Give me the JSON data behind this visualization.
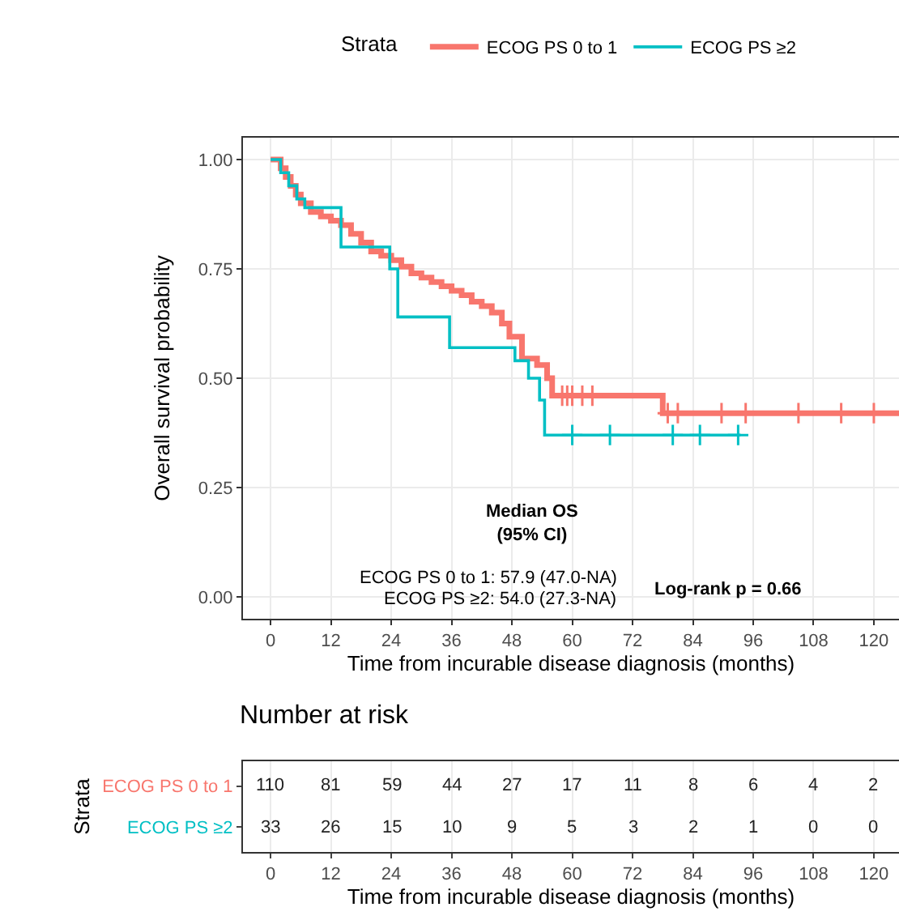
{
  "chart_data": [
    {
      "type": "step",
      "xlabel": "Time from incurable disease diagnosis (months)",
      "ylabel": "Overall survival probability",
      "legend_title": "Strata",
      "legend": "top",
      "grid": true,
      "line_style": "solid",
      "xlim": [
        -5.5,
        125
      ],
      "xticks": [
        0,
        12,
        24,
        36,
        48,
        60,
        72,
        84,
        96,
        108,
        120
      ],
      "ylim": [
        -0.05,
        1.05
      ],
      "yticks": [
        {
          "value": 0,
          "label": "0.00"
        },
        {
          "value": 0.25,
          "label": "0.25"
        },
        {
          "value": 0.5,
          "label": "0.50"
        },
        {
          "value": 0.75,
          "label": "0.75"
        },
        {
          "value": 1,
          "label": "1.00"
        }
      ],
      "annotations": [
        "Median OS\n(95% CI)",
        "ECOG PS 0 to 1: 57.9 (47.0-NA)",
        "ECOG PS ≥2: 54.0 (27.3-NA)",
        "Log-rank p = 0.66"
      ],
      "series": [
        {
          "name": "ECOG PS 0 to 1",
          "color": "#f8766d",
          "x": [
            0,
            2,
            3,
            4,
            5,
            6,
            8,
            10,
            12,
            14,
            16,
            18,
            20,
            22,
            24,
            26,
            28,
            30,
            32,
            34,
            36,
            38,
            40,
            42,
            44,
            46,
            47.5,
            50,
            53,
            55,
            56,
            78,
            125
          ],
          "values": [
            1,
            0.98,
            0.96,
            0.94,
            0.92,
            0.9,
            0.88,
            0.87,
            0.86,
            0.85,
            0.83,
            0.81,
            0.79,
            0.78,
            0.77,
            0.755,
            0.74,
            0.73,
            0.72,
            0.71,
            0.7,
            0.69,
            0.675,
            0.665,
            0.65,
            0.625,
            0.595,
            0.545,
            0.53,
            0.5,
            0.46,
            0.42,
            0.42
          ]
        },
        {
          "name": "ECOG PS ≥2",
          "color": "#00bfc4",
          "x": [
            0,
            2,
            3.6,
            5.2,
            6.8,
            14,
            23.7,
            25.3,
            35.6,
            48.6,
            51.3,
            53.5,
            54.5,
            93.5
          ],
          "values": [
            1,
            0.97,
            0.94,
            0.91,
            0.89,
            0.8,
            0.75,
            0.64,
            0.57,
            0.54,
            0.5,
            0.45,
            0.37,
            0.37
          ]
        },
        {
          "type": "scatter",
          "marker": "cross",
          "color": "#f8766d",
          "x": [
            58,
            59,
            60,
            62,
            64,
            79,
            81,
            89.7,
            94.5,
            105,
            113.5,
            120
          ],
          "values": [
            0.46,
            0.46,
            0.46,
            0.46,
            0.46,
            0.42,
            0.42,
            0.42,
            0.42,
            0.42,
            0.42,
            0.42
          ]
        },
        {
          "type": "scatter",
          "marker": "cross",
          "color": "#00bfc4",
          "x": [
            60,
            67.5,
            80,
            85.4,
            93
          ],
          "values": [
            0.37,
            0.37,
            0.37,
            0.37,
            0.37
          ]
        }
      ]
    },
    {
      "type": "heatmap",
      "title": "Number at risk",
      "xlabel": "Time from incurable disease diagnosis (months)",
      "ylabel": "Strata",
      "grid": "x",
      "data_labels": true,
      "categories": [
        "0",
        "12",
        "24",
        "36",
        "48",
        "60",
        "72",
        "84",
        "96",
        "108",
        "120"
      ],
      "y_categories": [
        "ECOG PS 0 to 1",
        "ECOG PS ≥2"
      ],
      "cells": [
        [
          110,
          81,
          59,
          44,
          27,
          17,
          11,
          8,
          6,
          4,
          2
        ],
        [
          33,
          26,
          15,
          10,
          9,
          5,
          3,
          2,
          1,
          0,
          0
        ]
      ]
    }
  ]
}
